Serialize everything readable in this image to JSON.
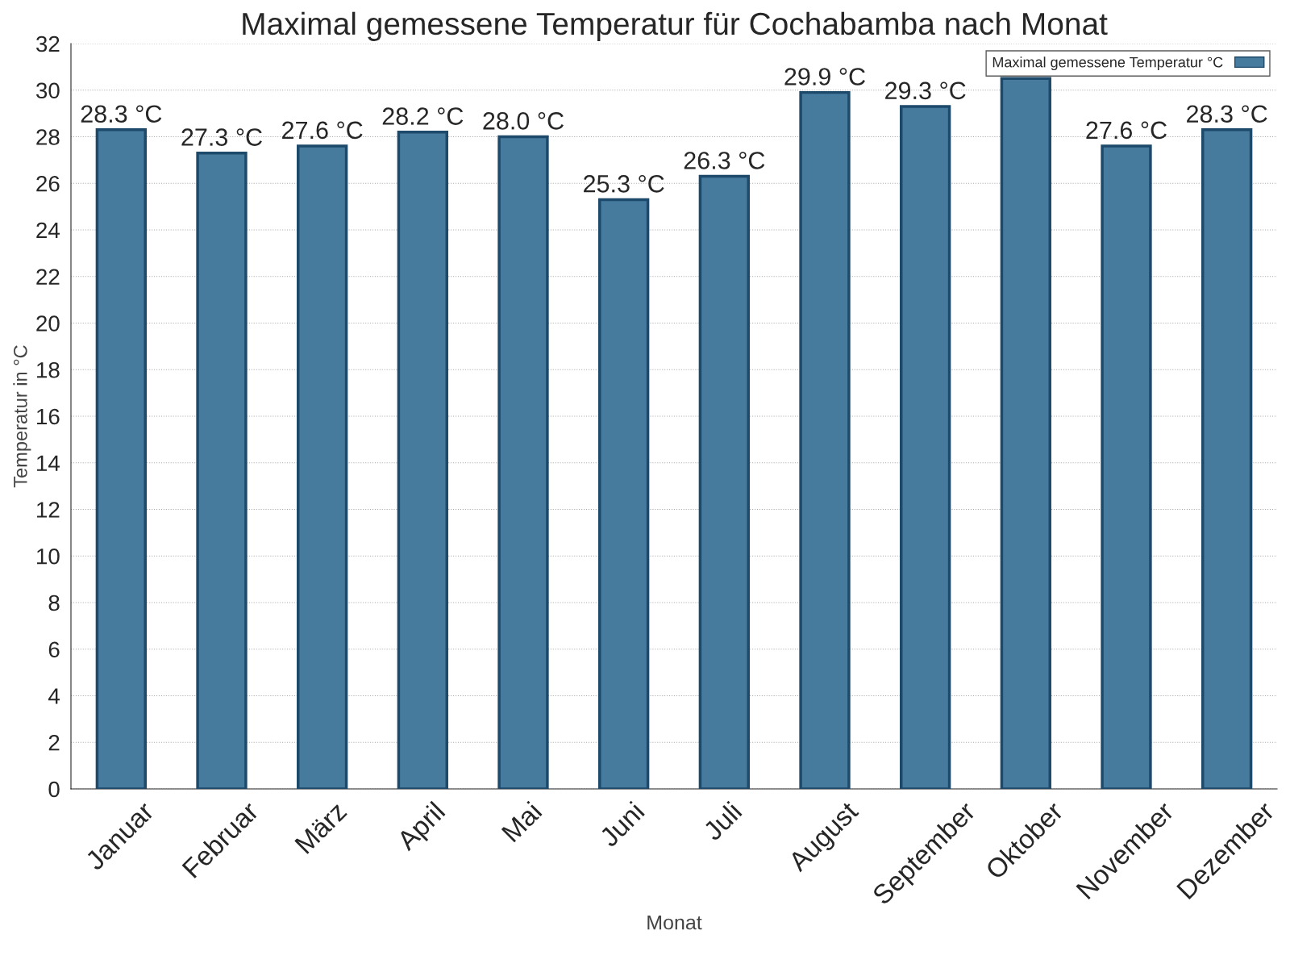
{
  "chart_data": {
    "type": "bar",
    "title": "Maximal gemessene Temperatur für Cochabamba nach Monat",
    "xlabel": "Monat",
    "ylabel": "Temperatur in °C",
    "categories": [
      "Januar",
      "Februar",
      "März",
      "April",
      "Mai",
      "Juni",
      "Juli",
      "August",
      "September",
      "Oktober",
      "November",
      "Dezember"
    ],
    "series": [
      {
        "name": "Maximal gemessene Temperatur °C",
        "color": "#467b9e",
        "values": [
          28.3,
          27.3,
          27.6,
          28.2,
          28.0,
          25.3,
          26.3,
          29.9,
          29.3,
          30.5,
          27.6,
          28.3
        ],
        "value_labels": [
          "28.3 °C",
          "27.3 °C",
          "27.6 °C",
          "28.2 °C",
          "28.0 °C",
          "25.3 °C",
          "26.3 °C",
          "29.9 °C",
          "29.3 °C",
          null,
          "27.6 °C",
          "28.3 °C"
        ]
      }
    ],
    "ylim": [
      0,
      32
    ],
    "yticks": [
      0,
      2,
      4,
      6,
      8,
      10,
      12,
      14,
      16,
      18,
      20,
      22,
      24,
      26,
      28,
      30,
      32
    ],
    "grid": "y",
    "legend": "top right"
  }
}
